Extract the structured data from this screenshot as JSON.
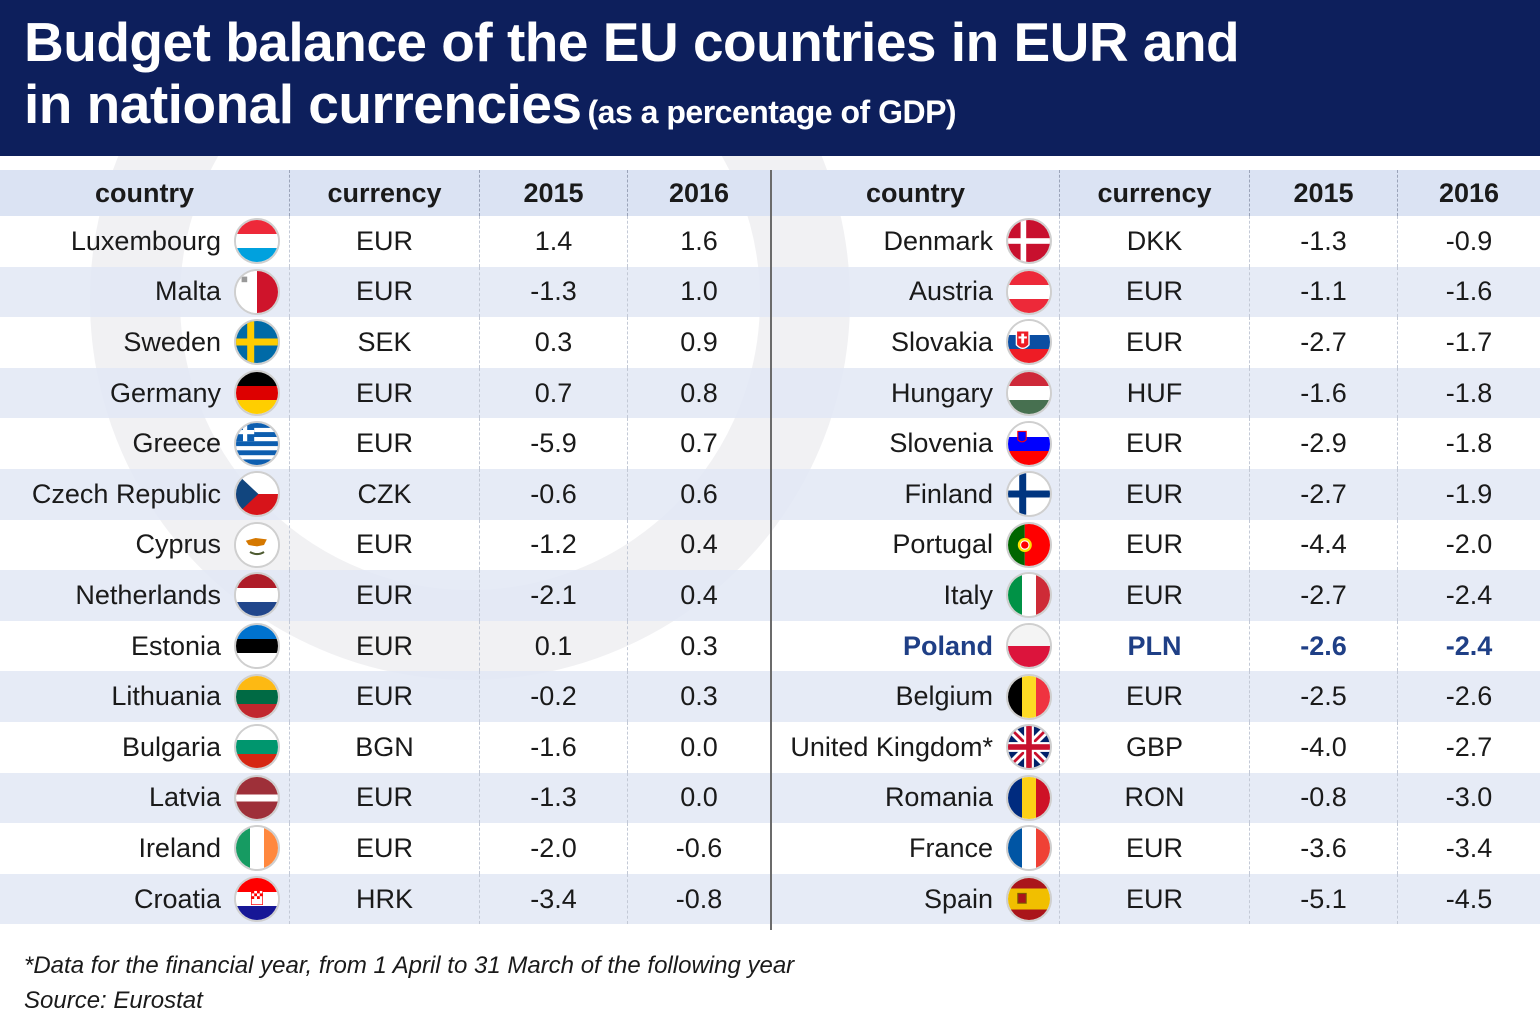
{
  "title_line1": "Budget balance of the EU countries in EUR and",
  "title_line2": "in national currencies",
  "title_sub": "(as a percentage of GDP)",
  "headers": {
    "country": "country",
    "currency": "currency",
    "y2015": "2015",
    "y2016": "2016"
  },
  "footnote": "*Data for the financial year, from 1 April to 31 March of the following year",
  "source": "Source: Eurostat",
  "colors": {
    "header_bg": "#0d1f5c",
    "highlight": "#1f3f86",
    "row_alt": "#e2e8f5"
  },
  "chart_data": {
    "type": "table",
    "columns": [
      "country",
      "currency",
      "2015",
      "2016"
    ],
    "highlighted_row": "Poland",
    "left_rows": [
      {
        "country": "Luxembourg",
        "flag": "flag-luxembourg",
        "currency": "EUR",
        "y2015": "1.4",
        "y2016": "1.6"
      },
      {
        "country": "Malta",
        "flag": "flag-malta",
        "currency": "EUR",
        "y2015": "-1.3",
        "y2016": "1.0"
      },
      {
        "country": "Sweden",
        "flag": "flag-sweden",
        "currency": "SEK",
        "y2015": "0.3",
        "y2016": "0.9"
      },
      {
        "country": "Germany",
        "flag": "flag-germany",
        "currency": "EUR",
        "y2015": "0.7",
        "y2016": "0.8"
      },
      {
        "country": "Greece",
        "flag": "flag-greece",
        "currency": "EUR",
        "y2015": "-5.9",
        "y2016": "0.7"
      },
      {
        "country": "Czech Republic",
        "flag": "flag-czech",
        "currency": "CZK",
        "y2015": "-0.6",
        "y2016": "0.6"
      },
      {
        "country": "Cyprus",
        "flag": "flag-cyprus",
        "currency": "EUR",
        "y2015": "-1.2",
        "y2016": "0.4"
      },
      {
        "country": "Netherlands",
        "flag": "flag-netherlands",
        "currency": "EUR",
        "y2015": "-2.1",
        "y2016": "0.4"
      },
      {
        "country": "Estonia",
        "flag": "flag-estonia",
        "currency": "EUR",
        "y2015": "0.1",
        "y2016": "0.3"
      },
      {
        "country": "Lithuania",
        "flag": "flag-lithuania",
        "currency": "EUR",
        "y2015": "-0.2",
        "y2016": "0.3"
      },
      {
        "country": "Bulgaria",
        "flag": "flag-bulgaria",
        "currency": "BGN",
        "y2015": "-1.6",
        "y2016": "0.0"
      },
      {
        "country": "Latvia",
        "flag": "flag-latvia",
        "currency": "EUR",
        "y2015": "-1.3",
        "y2016": "0.0"
      },
      {
        "country": "Ireland",
        "flag": "flag-ireland",
        "currency": "EUR",
        "y2015": "-2.0",
        "y2016": "-0.6"
      },
      {
        "country": "Croatia",
        "flag": "flag-croatia",
        "currency": "HRK",
        "y2015": "-3.4",
        "y2016": "-0.8"
      }
    ],
    "right_rows": [
      {
        "country": "Denmark",
        "flag": "flag-denmark",
        "currency": "DKK",
        "y2015": "-1.3",
        "y2016": "-0.9"
      },
      {
        "country": "Austria",
        "flag": "flag-austria",
        "currency": "EUR",
        "y2015": "-1.1",
        "y2016": "-1.6"
      },
      {
        "country": "Slovakia",
        "flag": "flag-slovakia",
        "currency": "EUR",
        "y2015": "-2.7",
        "y2016": "-1.7"
      },
      {
        "country": "Hungary",
        "flag": "flag-hungary",
        "currency": "HUF",
        "y2015": "-1.6",
        "y2016": "-1.8"
      },
      {
        "country": "Slovenia",
        "flag": "flag-slovenia",
        "currency": "EUR",
        "y2015": "-2.9",
        "y2016": "-1.8"
      },
      {
        "country": "Finland",
        "flag": "flag-finland",
        "currency": "EUR",
        "y2015": "-2.7",
        "y2016": "-1.9"
      },
      {
        "country": "Portugal",
        "flag": "flag-portugal",
        "currency": "EUR",
        "y2015": "-4.4",
        "y2016": "-2.0"
      },
      {
        "country": "Italy",
        "flag": "flag-italy",
        "currency": "EUR",
        "y2015": "-2.7",
        "y2016": "-2.4"
      },
      {
        "country": "Poland",
        "flag": "flag-poland",
        "currency": "PLN",
        "y2015": "-2.6",
        "y2016": "-2.4"
      },
      {
        "country": "Belgium",
        "flag": "flag-belgium",
        "currency": "EUR",
        "y2015": "-2.5",
        "y2016": "-2.6"
      },
      {
        "country": "United Kingdom*",
        "flag": "flag-united-kingdom",
        "currency": "GBP",
        "y2015": "-4.0",
        "y2016": "-2.7"
      },
      {
        "country": "Romania",
        "flag": "flag-romania",
        "currency": "RON",
        "y2015": "-0.8",
        "y2016": "-3.0"
      },
      {
        "country": "France",
        "flag": "flag-france",
        "currency": "EUR",
        "y2015": "-3.6",
        "y2016": "-3.4"
      },
      {
        "country": "Spain",
        "flag": "flag-spain",
        "currency": "EUR",
        "y2015": "-5.1",
        "y2016": "-4.5"
      }
    ]
  }
}
